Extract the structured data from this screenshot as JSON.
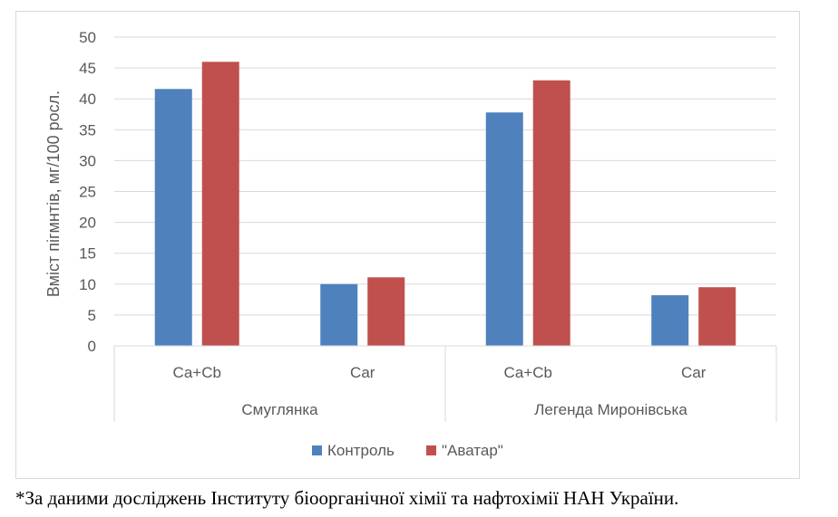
{
  "chart_data": {
    "type": "bar",
    "title": "",
    "xlabel": "",
    "ylabel": "Вміст пігмнтів, мг/100 росл.",
    "ylim": [
      0,
      50
    ],
    "yticks": [
      0,
      5,
      10,
      15,
      20,
      25,
      30,
      35,
      40,
      45,
      50
    ],
    "grid": true,
    "legend_position": "bottom",
    "groups": [
      {
        "label": "Смуглянка",
        "categories": [
          "Ca+Cb",
          "Car"
        ]
      },
      {
        "label": "Легенда Миронівська",
        "categories": [
          "Ca+Cb",
          "Car"
        ]
      }
    ],
    "categories": [
      "Ca+Cb",
      "Car",
      "Ca+Cb",
      "Car"
    ],
    "series": [
      {
        "name": "Контроль",
        "color": "#4f81bd",
        "values": [
          41.6,
          10.0,
          37.8,
          8.2
        ]
      },
      {
        "name": "\"Аватар\"",
        "color": "#c0504d",
        "values": [
          46.0,
          11.1,
          43.0,
          9.5
        ]
      }
    ]
  },
  "footnote": "*За даними досліджень Інституту біоорганічної хімії та нафтохімії НАН України."
}
